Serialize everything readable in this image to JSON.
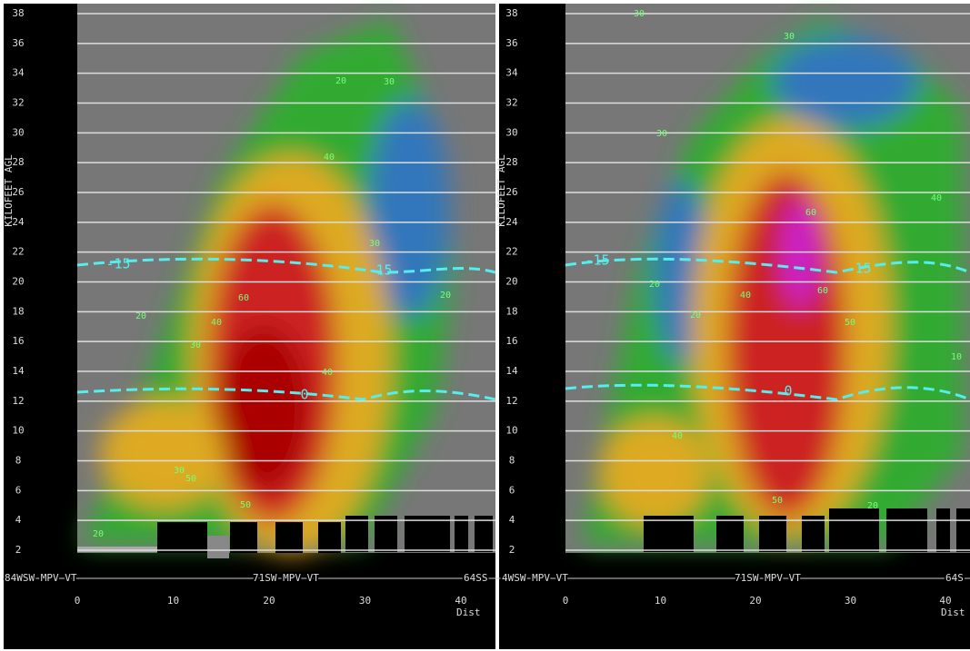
{
  "panels": [
    {
      "y_axis_label": "KILOFEET AGL",
      "y_ticks": [
        2,
        4,
        6,
        8,
        10,
        12,
        14,
        16,
        18,
        20,
        22,
        24,
        26,
        28,
        30,
        32,
        34,
        36,
        38
      ],
      "x_ticks": [
        0,
        10,
        20,
        30,
        40
      ],
      "x_axis_label": "Dist",
      "locations": [
        "84WSW MPV VT",
        "71SW MPV VT",
        "64SS"
      ],
      "isotherm_labels": [
        "-15",
        "-15",
        "0"
      ],
      "contour_labels": [
        "20",
        "30",
        "20",
        "30",
        "40",
        "40",
        "50",
        "60",
        "30",
        "50",
        "20",
        "30",
        "40",
        "20"
      ]
    },
    {
      "y_axis_label": "KILOFEET AGL",
      "y_ticks": [
        2,
        4,
        6,
        8,
        10,
        12,
        14,
        16,
        18,
        20,
        22,
        24,
        26,
        28,
        30,
        32,
        34,
        36,
        38
      ],
      "x_ticks": [
        0,
        10,
        20,
        30,
        40
      ],
      "x_axis_label": "Dist",
      "locations": [
        "4WSW MPV VT",
        "71SW MPV VT",
        "64S"
      ],
      "isotherm_labels": [
        "-15",
        "-15",
        "0"
      ],
      "contour_labels": [
        "30",
        "30",
        "20",
        "30",
        "40",
        "60",
        "60",
        "50",
        "40",
        "20",
        "40",
        "50",
        "20",
        "10"
      ]
    }
  ]
}
